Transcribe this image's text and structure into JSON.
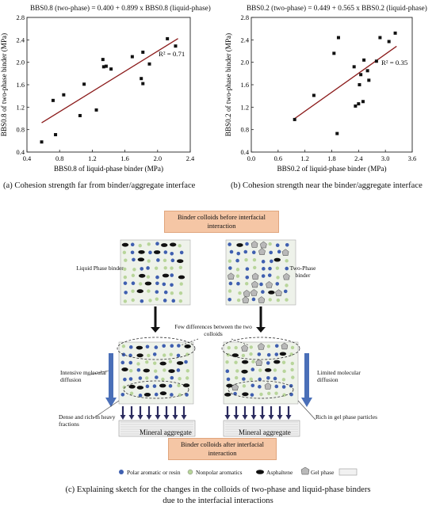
{
  "chart_data": [
    {
      "type": "scatter",
      "equation": "BBS0.8 (two-phase) = 0.400 + 0.899 x BBS0.8 (liquid-phase)",
      "xlabel": "BBS0.8 of liquid-phase binder (MPa)",
      "ylabel": "BBS0.8 of two-phase binder (MPa)",
      "xlim": [
        0.4,
        2.4
      ],
      "ylim": [
        0.4,
        2.8
      ],
      "xticks": [
        "0.4",
        "0.8",
        "1.2",
        "1.6",
        "2.0",
        "2.4"
      ],
      "yticks": [
        "0.4",
        "0.8",
        "1.2",
        "1.6",
        "2.0",
        "2.4",
        "2.8"
      ],
      "r2": "R² = 0.71",
      "fit": {
        "intercept": 0.4,
        "slope": 0.899,
        "x_from": 0.58,
        "x_to": 2.25
      },
      "points": [
        [
          0.58,
          0.58
        ],
        [
          0.72,
          1.32
        ],
        [
          0.75,
          0.71
        ],
        [
          0.85,
          1.42
        ],
        [
          1.05,
          1.05
        ],
        [
          1.1,
          1.61
        ],
        [
          1.25,
          1.15
        ],
        [
          1.33,
          2.05
        ],
        [
          1.34,
          1.92
        ],
        [
          1.37,
          1.93
        ],
        [
          1.43,
          1.88
        ],
        [
          1.69,
          2.1
        ],
        [
          1.8,
          1.71
        ],
        [
          1.82,
          1.62
        ],
        [
          1.82,
          2.18
        ],
        [
          1.9,
          1.97
        ],
        [
          2.12,
          2.42
        ],
        [
          2.22,
          2.29
        ]
      ]
    },
    {
      "type": "scatter",
      "equation": "BBS0.2 (two-phase) = 0.449 + 0.565 x BBS0.2 (liquid-phase)",
      "xlabel": "BBS0.2 of liquid-phase binder (MPa)",
      "ylabel": "BBS0.2 of two-phase binder (MPa)",
      "xlim": [
        0.0,
        3.6
      ],
      "ylim": [
        0.4,
        2.8
      ],
      "xticks": [
        "0.0",
        "0.6",
        "1.2",
        "1.8",
        "2.4",
        "3.0",
        "3.6"
      ],
      "yticks": [
        "0.4",
        "0.8",
        "1.2",
        "1.6",
        "2.0",
        "2.4",
        "2.8"
      ],
      "r2": "R² = 0.35",
      "fit": {
        "intercept": 0.449,
        "slope": 0.565,
        "x_from": 0.95,
        "x_to": 3.25
      },
      "points": [
        [
          0.97,
          0.98
        ],
        [
          1.4,
          1.41
        ],
        [
          1.85,
          2.16
        ],
        [
          1.92,
          0.73
        ],
        [
          1.95,
          2.44
        ],
        [
          2.3,
          1.92
        ],
        [
          2.33,
          1.22
        ],
        [
          2.4,
          1.26
        ],
        [
          2.42,
          1.6
        ],
        [
          2.45,
          1.78
        ],
        [
          2.5,
          1.3
        ],
        [
          2.52,
          2.04
        ],
        [
          2.6,
          1.85
        ],
        [
          2.63,
          1.68
        ],
        [
          2.8,
          2.02
        ],
        [
          2.88,
          2.44
        ],
        [
          3.08,
          2.37
        ],
        [
          3.22,
          2.52
        ]
      ]
    }
  ],
  "captions": {
    "a": "(a)  Cohesion strength far from binder/aggregate interface",
    "b": "(b)  Cohesion strength near the binder/aggregate interface",
    "c_line1": "(c)  Explaining sketch for the changes in the colloids of two-phase and liquid-phase binders",
    "c_line2": "due to the interfacial interactions"
  },
  "diagram": {
    "before_label": "Binder colloids before interfacial interaction",
    "after_label": "Binder colloids after interfacial interaction",
    "left_title": "Liquid Phase binder",
    "right_title": "Two-Phase binder",
    "center_note": "Few differences between the two colloids",
    "left_note1": "Intensive molecular diffusion",
    "left_note2": "Dense and rich in heavy fractions",
    "right_note1": "Limited molecular diffusion",
    "right_note2": "Rich in gel phase particles",
    "aggregate_left": "Mineral aggregate",
    "aggregate_right": "Mineral aggregate",
    "legend": [
      "Polar aromatic or resin",
      "Nonpolar aromatics",
      "Asphaltene",
      "Gel phase",
      ""
    ],
    "colors": {
      "blue": "#3f5fb0",
      "green": "#b8d59a",
      "arrow": "#4a6fb8",
      "peach": "#f5c6a5",
      "line": "#8b1a1a"
    }
  }
}
